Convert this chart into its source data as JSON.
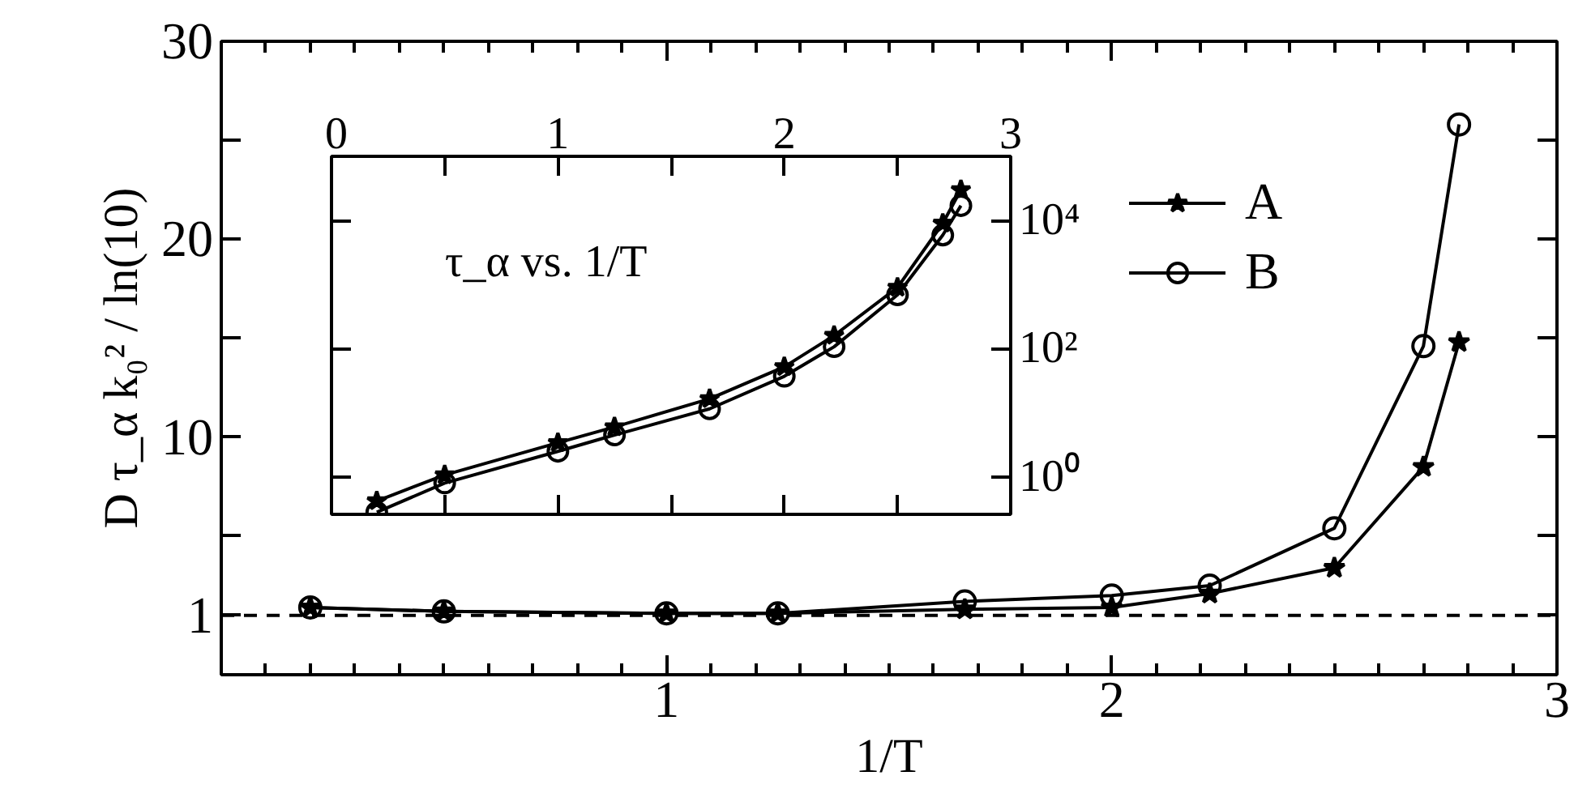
{
  "chart_data": [
    {
      "type": "line",
      "xlabel": "1/T",
      "ylabel": "D τ_α k₀² / ln(10)",
      "xlim": [
        0,
        3
      ],
      "ylim": [
        -2,
        30
      ],
      "xticks": [
        1,
        2,
        3
      ],
      "yticks": [
        1,
        {
          "value": 5,
          "label": null
        },
        10,
        {
          "value": 15,
          "label": null
        },
        20,
        {
          "value": 25,
          "label": null
        },
        30
      ],
      "grid": false,
      "legend": "top right",
      "ref_lines": [
        {
          "axis": "y",
          "value": 1,
          "label": null,
          "color": "#000000",
          "line_style": "dashed"
        }
      ],
      "x": [
        0.2,
        0.5,
        1.0,
        1.25,
        1.67,
        2.0,
        2.22,
        2.5,
        2.7,
        2.78
      ],
      "series": [
        {
          "name": "A",
          "color": "#000000",
          "marker": "star",
          "values": [
            1.4,
            1.2,
            1.1,
            1.1,
            1.3,
            1.4,
            2.1,
            3.4,
            8.5,
            14.8
          ]
        },
        {
          "name": "B",
          "color": "#000000",
          "marker": "circle",
          "values": [
            1.4,
            1.2,
            1.1,
            1.1,
            1.7,
            2.0,
            2.5,
            5.4,
            14.6,
            25.8
          ]
        }
      ]
    },
    {
      "type": "line",
      "annotations": [
        "τ_α vs. 1/T"
      ],
      "log": "y",
      "xlim": [
        0,
        3
      ],
      "ylim": [
        0.26,
        100000
      ],
      "xticks": [
        0,
        {
          "value": 0.5,
          "label": null
        },
        1,
        {
          "value": 1.5,
          "label": null
        },
        2,
        {
          "value": 2.5,
          "label": null
        },
        3
      ],
      "yticks": [
        {
          "value": 1,
          "label": "10⁰"
        },
        {
          "value": 100,
          "label": "10²"
        },
        {
          "value": 10000,
          "label": "10⁴"
        }
      ],
      "grid": false,
      "legend": false,
      "x": [
        0.2,
        0.5,
        1.0,
        1.25,
        1.67,
        2.0,
        2.22,
        2.5,
        2.7,
        2.78
      ],
      "series": [
        {
          "color": "#000000",
          "marker": "star",
          "values": [
            0.42,
            1.07,
            3.4,
            6,
            16.5,
            52,
            160,
            900,
            9000,
            30000
          ]
        },
        {
          "color": "#000000",
          "marker": "circle",
          "values": [
            0.28,
            0.8,
            2.5,
            4.5,
            11.5,
            37,
            107,
            690,
            5900,
            17000
          ]
        }
      ]
    }
  ]
}
